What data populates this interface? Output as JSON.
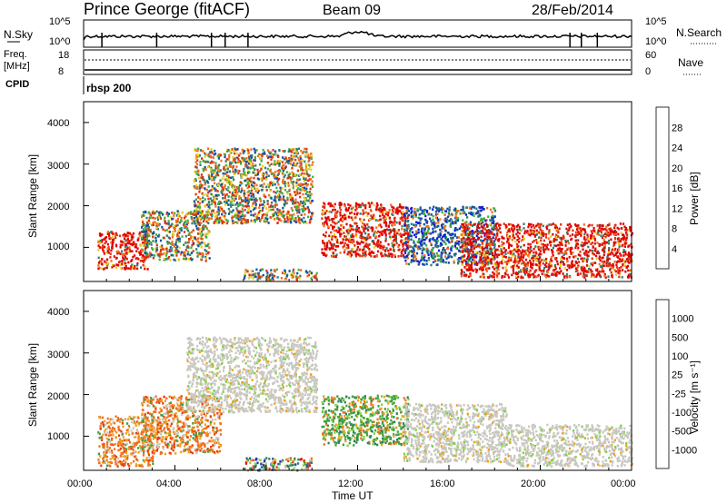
{
  "header": {
    "station": "Prince George (fitACF)",
    "beam": "Beam 09",
    "date": "28/Feb/2014"
  },
  "panels": {
    "nsky": {
      "left_label": "N.Sky",
      "left_ticks": [
        "10^5",
        "10^0"
      ],
      "right_ticks": [
        "10^5",
        "10^0"
      ],
      "right_label": "N.Search"
    },
    "freq": {
      "left_label": "Freq.",
      "left_unit": "[MHz]",
      "left_ticks": [
        "18",
        "8"
      ],
      "right_ticks": [
        "60",
        "0"
      ],
      "right_label": "Nave"
    },
    "cpid": {
      "label": "CPID",
      "mode": "rbsp 200"
    }
  },
  "xaxis": {
    "label": "Time UT",
    "ticks": [
      "00:00",
      "04:00",
      "08:00",
      "12:00",
      "16:00",
      "20:00",
      "00:00"
    ]
  },
  "power_panel": {
    "ylabel": "Slant Range [km]",
    "yticks": [
      "4000",
      "3000",
      "2000",
      "1000"
    ],
    "colorbar_label": "Power [dB]",
    "colorbar_ticks": [
      "28",
      "24",
      "20",
      "16",
      "12",
      "8",
      "4"
    ],
    "colors": [
      "#1018e0",
      "#1050a8",
      "#2f8070",
      "#40b040",
      "#e8d020",
      "#f0a020",
      "#f07020",
      "#e03010",
      "#e00000"
    ]
  },
  "velocity_panel": {
    "ylabel": "Slant Range [km]",
    "yticks": [
      "4000",
      "3000",
      "2000",
      "1000"
    ],
    "colorbar_label": "Velocity [m s⁻¹]",
    "colorbar_ticks": [
      "1000",
      "500",
      "100",
      "25",
      "-25",
      "-100",
      "-500",
      "-1000"
    ],
    "colors": [
      "#1830c0",
      "#2060a0",
      "#2f8060",
      "#40a040",
      "#80d040",
      "#c8c8c0",
      "#f0a020",
      "#f07020",
      "#e84010",
      "#e00000"
    ]
  },
  "chart_data": {
    "type": "heatmap",
    "x_range_ut_hours": [
      0,
      24
    ],
    "y_range_km": [
      180,
      4500
    ],
    "power_blobs": [
      {
        "t0": 0.6,
        "t1": 2.8,
        "r0": 500,
        "r1": 1400,
        "level": "high"
      },
      {
        "t0": 2.5,
        "t1": 5.5,
        "r0": 700,
        "r1": 1900,
        "level": "mid"
      },
      {
        "t0": 4.8,
        "t1": 10.0,
        "r0": 1600,
        "r1": 3400,
        "level": "mid"
      },
      {
        "t0": 7.0,
        "t1": 10.2,
        "r0": 250,
        "r1": 500,
        "level": "mid"
      },
      {
        "t0": 10.4,
        "t1": 14.2,
        "r0": 800,
        "r1": 2100,
        "level": "high"
      },
      {
        "t0": 14.0,
        "t1": 18.0,
        "r0": 600,
        "r1": 2000,
        "level": "low"
      },
      {
        "t0": 16.5,
        "t1": 24.0,
        "r0": 300,
        "r1": 1600,
        "level": "high"
      }
    ],
    "velocity_blobs": [
      {
        "t0": 0.6,
        "t1": 3.0,
        "r0": 300,
        "r1": 1500,
        "class": "neg"
      },
      {
        "t0": 2.5,
        "t1": 6.0,
        "r0": 600,
        "r1": 2000,
        "class": "neg"
      },
      {
        "t0": 4.5,
        "t1": 10.2,
        "r0": 1600,
        "r1": 3400,
        "class": "ground"
      },
      {
        "t0": 7.0,
        "t1": 10.0,
        "r0": 200,
        "r1": 500,
        "class": "mixed"
      },
      {
        "t0": 10.4,
        "t1": 14.2,
        "r0": 800,
        "r1": 2000,
        "class": "pos"
      },
      {
        "t0": 14.0,
        "t1": 18.5,
        "r0": 400,
        "r1": 1800,
        "class": "ground"
      },
      {
        "t0": 18.5,
        "t1": 24.0,
        "r0": 300,
        "r1": 1300,
        "class": "ground"
      }
    ]
  }
}
